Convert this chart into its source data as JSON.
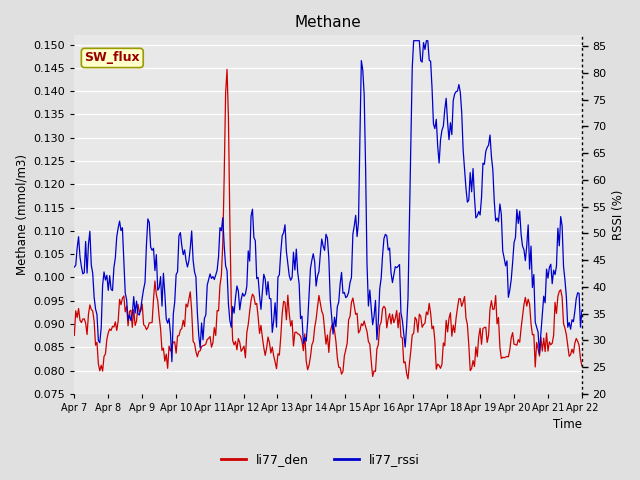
{
  "title": "Methane",
  "ylabel_left": "Methane (mmol/m3)",
  "ylabel_right": "RSSI (%)",
  "xlabel": "Time",
  "ylim_left": [
    0.075,
    0.152
  ],
  "ylim_right": [
    20,
    87
  ],
  "yticks_left": [
    0.075,
    0.08,
    0.085,
    0.09,
    0.095,
    0.1,
    0.105,
    0.11,
    0.115,
    0.12,
    0.125,
    0.13,
    0.135,
    0.14,
    0.145,
    0.15
  ],
  "yticks_right": [
    20,
    25,
    30,
    35,
    40,
    45,
    50,
    55,
    60,
    65,
    70,
    75,
    80,
    85
  ],
  "xtick_labels": [
    "Apr 7",
    "Apr 8",
    "Apr 9",
    "Apr 10",
    "Apr 11",
    "Apr 12",
    "Apr 13",
    "Apr 14",
    "Apr 15",
    "Apr 16",
    "Apr 17",
    "Apr 18",
    "Apr 19",
    "Apr 20",
    "Apr 21",
    "Apr 22"
  ],
  "color_red": "#cc0000",
  "color_blue": "#0000cc",
  "bg_color": "#e0e0e0",
  "plot_bg_color": "#e8e8e8",
  "legend_labels": [
    "li77_den",
    "li77_rssi"
  ],
  "annotation_text": "SW_flux",
  "annotation_color": "#990000",
  "annotation_bg": "#ffffcc",
  "annotation_border": "#999900"
}
